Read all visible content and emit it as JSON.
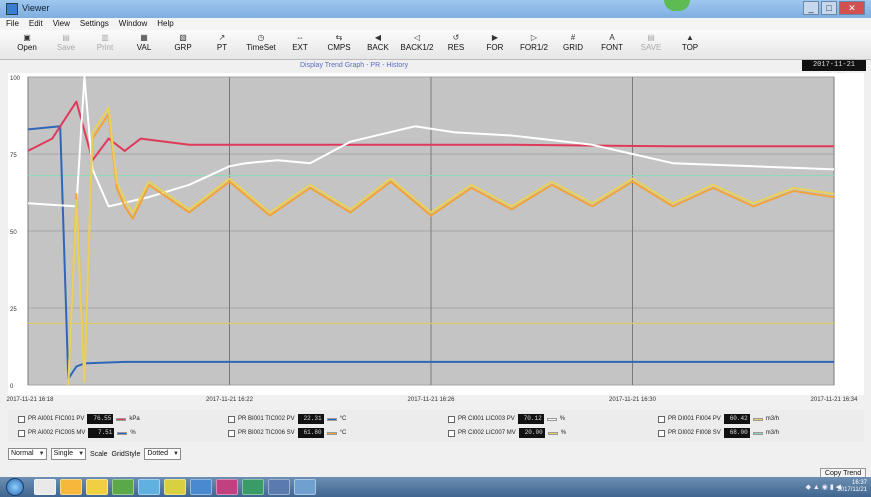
{
  "window": {
    "title": "Viewer",
    "controls": [
      "_",
      "□",
      "✕"
    ]
  },
  "menu": [
    "File",
    "Edit",
    "View",
    "Settings",
    "Window",
    "Help"
  ],
  "toolbar": [
    {
      "label": "Open",
      "icon": "folder-icon",
      "glyph": "▣",
      "disabled": false
    },
    {
      "label": "Save",
      "icon": "save-icon",
      "glyph": "▤",
      "disabled": true
    },
    {
      "label": "Print",
      "icon": "print-icon",
      "glyph": "▥",
      "disabled": true
    },
    {
      "label": "VAL",
      "icon": "value-icon",
      "glyph": "▦",
      "disabled": false
    },
    {
      "label": "GRP",
      "icon": "group-icon",
      "glyph": "▧",
      "disabled": false
    },
    {
      "label": "PT",
      "icon": "pointer-icon",
      "glyph": "↗",
      "disabled": false
    },
    {
      "label": "TimeSet",
      "icon": "clock-icon",
      "glyph": "◷",
      "disabled": false
    },
    {
      "label": "EXT",
      "icon": "extend-icon",
      "glyph": "⇔",
      "disabled": false
    },
    {
      "label": "CMPS",
      "icon": "compress-icon",
      "glyph": "⇆",
      "disabled": false
    },
    {
      "label": "BACK",
      "icon": "back-icon",
      "glyph": "◀",
      "disabled": false
    },
    {
      "label": "BACK1/2",
      "icon": "back-half-icon",
      "glyph": "◁",
      "disabled": false
    },
    {
      "label": "RES",
      "icon": "reset-icon",
      "glyph": "↺",
      "disabled": false
    },
    {
      "label": "FOR",
      "icon": "forward-icon",
      "glyph": "▶",
      "disabled": false
    },
    {
      "label": "FOR1/2",
      "icon": "forward-half-icon",
      "glyph": "▷",
      "disabled": false
    },
    {
      "label": "GRID",
      "icon": "grid-icon",
      "glyph": "#",
      "disabled": false
    },
    {
      "label": "FONT",
      "icon": "font-icon",
      "glyph": "A",
      "disabled": false
    },
    {
      "label": "SAVE",
      "icon": "save-setting-icon",
      "glyph": "▤",
      "disabled": true
    },
    {
      "label": "TOP",
      "icon": "top-icon",
      "glyph": "▲",
      "disabled": false
    }
  ],
  "subtitle": "Display Trend Graph - PR - History",
  "clock": "2017-11-21 16:37",
  "chart_data": {
    "type": "line",
    "ylim": [
      0,
      100
    ],
    "xlim": [
      0,
      100
    ],
    "x_ticks": [
      {
        "x": 0,
        "label": "2017-11-21 16:18"
      },
      {
        "x": 25,
        "label": "2017-11-21 16:22"
      },
      {
        "x": 50,
        "label": "2017-11-21 16:26"
      },
      {
        "x": 75,
        "label": "2017-11-21 16:30"
      },
      {
        "x": 100,
        "label": "2017-11-21 16:34"
      }
    ],
    "y_ticks": [
      {
        "y": 100,
        "label": "100"
      },
      {
        "y": 75,
        "label": "75"
      },
      {
        "y": 50,
        "label": "50"
      },
      {
        "y": 25,
        "label": "25"
      },
      {
        "y": 0,
        "label": "0"
      }
    ],
    "hlines": [
      {
        "y": 68,
        "color": "#8fd8b8"
      },
      {
        "y": 20,
        "color": "#d6c96a"
      }
    ],
    "series": [
      {
        "color": "#2f66b8",
        "x": [
          0,
          4,
          5,
          6,
          7,
          12,
          30,
          60,
          100
        ],
        "y": [
          83,
          84,
          2,
          6,
          7,
          7.5,
          7.5,
          7.5,
          7.5
        ]
      },
      {
        "color": "#e03a5a",
        "x": [
          0,
          3,
          6,
          8,
          10,
          12,
          14,
          20,
          40,
          60,
          80,
          100
        ],
        "y": [
          76,
          80,
          92,
          73,
          80,
          76,
          80,
          78,
          78,
          78,
          77.5,
          77.5
        ]
      },
      {
        "color": "#ffffff",
        "x": [
          0,
          6,
          7,
          8,
          10,
          15,
          20,
          25,
          27,
          31,
          35,
          40,
          48,
          53,
          60,
          70,
          80,
          90,
          100
        ],
        "y": [
          59,
          58,
          100,
          70,
          58,
          61,
          65,
          71,
          72,
          73,
          72,
          79,
          84,
          82,
          81,
          78,
          72,
          71,
          70
        ]
      },
      {
        "color": "#f2a23a",
        "x": [
          5,
          6,
          7,
          8,
          10,
          11,
          12,
          13,
          15,
          20,
          25,
          30,
          35,
          40,
          45,
          50,
          55,
          60,
          65,
          70,
          75,
          80,
          85,
          90,
          95,
          100
        ],
        "y": [
          0,
          62,
          2,
          80,
          88,
          64,
          58,
          54,
          65,
          56,
          66,
          55,
          64,
          56,
          66,
          55,
          64,
          57,
          65,
          58,
          66,
          58,
          64,
          58,
          63,
          61
        ]
      },
      {
        "color": "#e8d25a",
        "x": [
          5,
          6,
          7,
          8,
          10,
          11,
          12,
          13,
          15,
          20,
          25,
          30,
          35,
          40,
          45,
          50,
          55,
          60,
          65,
          70,
          75,
          80,
          85,
          90,
          95,
          100
        ],
        "y": [
          0,
          60,
          1,
          82,
          90,
          66,
          60,
          56,
          66,
          57,
          67,
          56,
          65,
          57,
          67,
          56,
          65,
          58,
          66,
          59,
          67,
          59,
          65,
          59,
          64,
          62
        ]
      }
    ]
  },
  "legend": [
    {
      "name": "PR AI001 FIC001 PV",
      "value": "76.55",
      "color": "#e03a5a",
      "unit": "kPa"
    },
    {
      "name": "PR BI001 TIC002 PV",
      "value": "22.31",
      "color": "#2f66b8",
      "unit": "°C"
    },
    {
      "name": "PR CI001 LIC003 PV",
      "value": "70.12",
      "color": "#ffffff",
      "unit": "%"
    },
    {
      "name": "PR DI001 FI004 PV",
      "value": "60.42",
      "color": "#e8d25a",
      "unit": "m3/h"
    },
    {
      "name": "PR AI002 FIC005 MV",
      "value": "7.51",
      "color": "#2f66b8",
      "unit": "%"
    },
    {
      "name": "PR BI002 TIC006 SV",
      "value": "61.80",
      "color": "#f2a23a",
      "unit": "°C"
    },
    {
      "name": "PR CI002 LIC007 MV",
      "value": "20.00",
      "color": "#e8d25a",
      "unit": "%"
    },
    {
      "name": "PR DI002 FI008 SV",
      "value": "68.00",
      "color": "#8fd8b8",
      "unit": "m3/h"
    }
  ],
  "controls": {
    "mode_label": "Normal",
    "scale_label": "Single",
    "scale_value": "Scale",
    "gridstyle_label": "GridStyle",
    "gridstyle_value": "Dotted"
  },
  "copy_button": "Copy Trend",
  "tray": {
    "time": "16:37",
    "date": "2017/11/21"
  }
}
